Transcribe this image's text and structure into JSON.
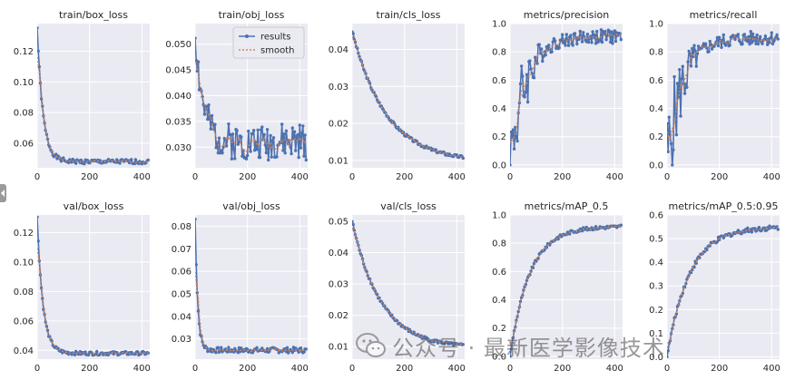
{
  "colors": {
    "panel_bg": "#eaeaf2",
    "grid": "#ffffff",
    "results": "#4c72b0",
    "smooth": "#dd8452",
    "text": "#262626"
  },
  "legend": {
    "results_label": "results",
    "smooth_label": "smooth",
    "placement": "top-right of train/obj_loss"
  },
  "watermark": {
    "text": "公众号 · 最新医学影像技术",
    "icon": "wechat-icon"
  },
  "side_tab": {
    "icon": "chevron-left-icon"
  },
  "chart_data": [
    {
      "type": "line",
      "title": "train/box_loss",
      "xlim": [
        0,
        430
      ],
      "ylim": [
        0.044,
        0.138
      ],
      "xticks": [
        "0",
        "200",
        "400"
      ],
      "xtick_values": [
        0,
        200,
        400
      ],
      "yticks": [
        "0.06",
        "0.08",
        "0.10",
        "0.12"
      ],
      "ytick_values": [
        0.06,
        0.08,
        0.1,
        0.12
      ],
      "curve": {
        "start": 0.135,
        "end": 0.048,
        "tau": 22,
        "noise": 0.0015,
        "seed": 1
      }
    },
    {
      "type": "line",
      "title": "train/obj_loss",
      "xlim": [
        0,
        430
      ],
      "ylim": [
        0.026,
        0.054
      ],
      "xticks": [
        "0",
        "200",
        "400"
      ],
      "xtick_values": [
        0,
        200,
        400
      ],
      "yticks": [
        "0.030",
        "0.035",
        "0.040",
        "0.045",
        "0.050"
      ],
      "ytick_values": [
        0.03,
        0.035,
        0.04,
        0.045,
        0.05
      ],
      "curve": {
        "start": 0.052,
        "end": 0.031,
        "tau": 30,
        "noise": 0.0035,
        "seed": 2
      },
      "legend": true
    },
    {
      "type": "line",
      "title": "train/cls_loss",
      "xlim": [
        0,
        430
      ],
      "ylim": [
        0.008,
        0.047
      ],
      "xticks": [
        "0",
        "200",
        "400"
      ],
      "xtick_values": [
        0,
        200,
        400
      ],
      "yticks": [
        "0.01",
        "0.02",
        "0.03",
        "0.04"
      ],
      "ytick_values": [
        0.01,
        0.02,
        0.03,
        0.04
      ],
      "curve": {
        "start": 0.045,
        "end": 0.0095,
        "tau": 130,
        "noise": 0.0004,
        "seed": 3
      }
    },
    {
      "type": "line",
      "title": "metrics/precision",
      "xlim": [
        0,
        430
      ],
      "ylim": [
        -0.02,
        1.0
      ],
      "xticks": [
        "0",
        "200",
        "400"
      ],
      "xtick_values": [
        0,
        200,
        400
      ],
      "yticks": [
        "0.0",
        "0.2",
        "0.4",
        "0.6",
        "0.8",
        "1.0"
      ],
      "ytick_values": [
        0.0,
        0.2,
        0.4,
        0.6,
        0.8,
        1.0
      ],
      "curve": {
        "start": 0.02,
        "end": 0.91,
        "tau": 60,
        "noise": 0.05,
        "seed": 4,
        "rising": true,
        "spiky": true
      }
    },
    {
      "type": "line",
      "title": "metrics/recall",
      "xlim": [
        0,
        430
      ],
      "ylim": [
        -0.02,
        1.0
      ],
      "xticks": [
        "0",
        "200",
        "400"
      ],
      "xtick_values": [
        0,
        200,
        400
      ],
      "yticks": [
        "0.0",
        "0.2",
        "0.4",
        "0.6",
        "0.8",
        "1.0"
      ],
      "ytick_values": [
        0.0,
        0.2,
        0.4,
        0.6,
        0.8,
        1.0
      ],
      "curve": {
        "start": 0.02,
        "end": 0.9,
        "tau": 60,
        "noise": 0.05,
        "seed": 5,
        "rising": true,
        "spiky": true
      }
    },
    {
      "type": "line",
      "title": "val/box_loss",
      "xlim": [
        0,
        430
      ],
      "ylim": [
        0.034,
        0.132
      ],
      "xticks": [
        "0",
        "200",
        "400"
      ],
      "xtick_values": [
        0,
        200,
        400
      ],
      "yticks": [
        "0.04",
        "0.06",
        "0.08",
        "0.10",
        "0.12"
      ],
      "ytick_values": [
        0.04,
        0.06,
        0.08,
        0.1,
        0.12
      ],
      "curve": {
        "start": 0.13,
        "end": 0.038,
        "tau": 22,
        "noise": 0.0012,
        "seed": 6
      }
    },
    {
      "type": "line",
      "title": "val/obj_loss",
      "xlim": [
        0,
        430
      ],
      "ylim": [
        0.021,
        0.085
      ],
      "xticks": [
        "0",
        "200",
        "400"
      ],
      "xtick_values": [
        0,
        200,
        400
      ],
      "yticks": [
        "0.03",
        "0.04",
        "0.05",
        "0.06",
        "0.07",
        "0.08"
      ],
      "ytick_values": [
        0.03,
        0.04,
        0.05,
        0.06,
        0.07,
        0.08
      ],
      "curve": {
        "start": 0.083,
        "end": 0.025,
        "tau": 10,
        "noise": 0.0012,
        "seed": 7
      }
    },
    {
      "type": "line",
      "title": "val/cls_loss",
      "xlim": [
        0,
        430
      ],
      "ylim": [
        0.006,
        0.052
      ],
      "xticks": [
        "0",
        "200",
        "400"
      ],
      "xtick_values": [
        0,
        200,
        400
      ],
      "yticks": [
        "0.01",
        "0.02",
        "0.03",
        "0.04",
        "0.05"
      ],
      "ytick_values": [
        0.01,
        0.02,
        0.03,
        0.04,
        0.05
      ],
      "curve": {
        "start": 0.05,
        "end": 0.0095,
        "tau": 110,
        "noise": 0.0005,
        "seed": 8
      }
    },
    {
      "type": "line",
      "title": "metrics/mAP_0.5",
      "xlim": [
        0,
        430
      ],
      "ylim": [
        -0.02,
        1.0
      ],
      "xticks": [
        "0",
        "200",
        "400"
      ],
      "xtick_values": [
        0,
        200,
        400
      ],
      "yticks": [
        "0.0",
        "0.2",
        "0.4",
        "0.6",
        "0.8",
        "1.0"
      ],
      "ytick_values": [
        0.0,
        0.2,
        0.4,
        0.6,
        0.8,
        1.0
      ],
      "curve": {
        "start": 0.0,
        "end": 0.92,
        "tau": 75,
        "noise": 0.012,
        "seed": 9,
        "rising": true
      }
    },
    {
      "type": "line",
      "title": "metrics/mAP_0.5:0.95",
      "xlim": [
        0,
        430
      ],
      "ylim": [
        -0.01,
        0.6
      ],
      "xticks": [
        "0",
        "200",
        "400"
      ],
      "xtick_values": [
        0,
        200,
        400
      ],
      "yticks": [
        "0.0",
        "0.1",
        "0.2",
        "0.3",
        "0.4",
        "0.5",
        "0.6"
      ],
      "ytick_values": [
        0.0,
        0.1,
        0.2,
        0.3,
        0.4,
        0.5,
        0.6
      ],
      "curve": {
        "start": 0.0,
        "end": 0.55,
        "tau": 85,
        "noise": 0.01,
        "seed": 10,
        "rising": true
      }
    }
  ]
}
